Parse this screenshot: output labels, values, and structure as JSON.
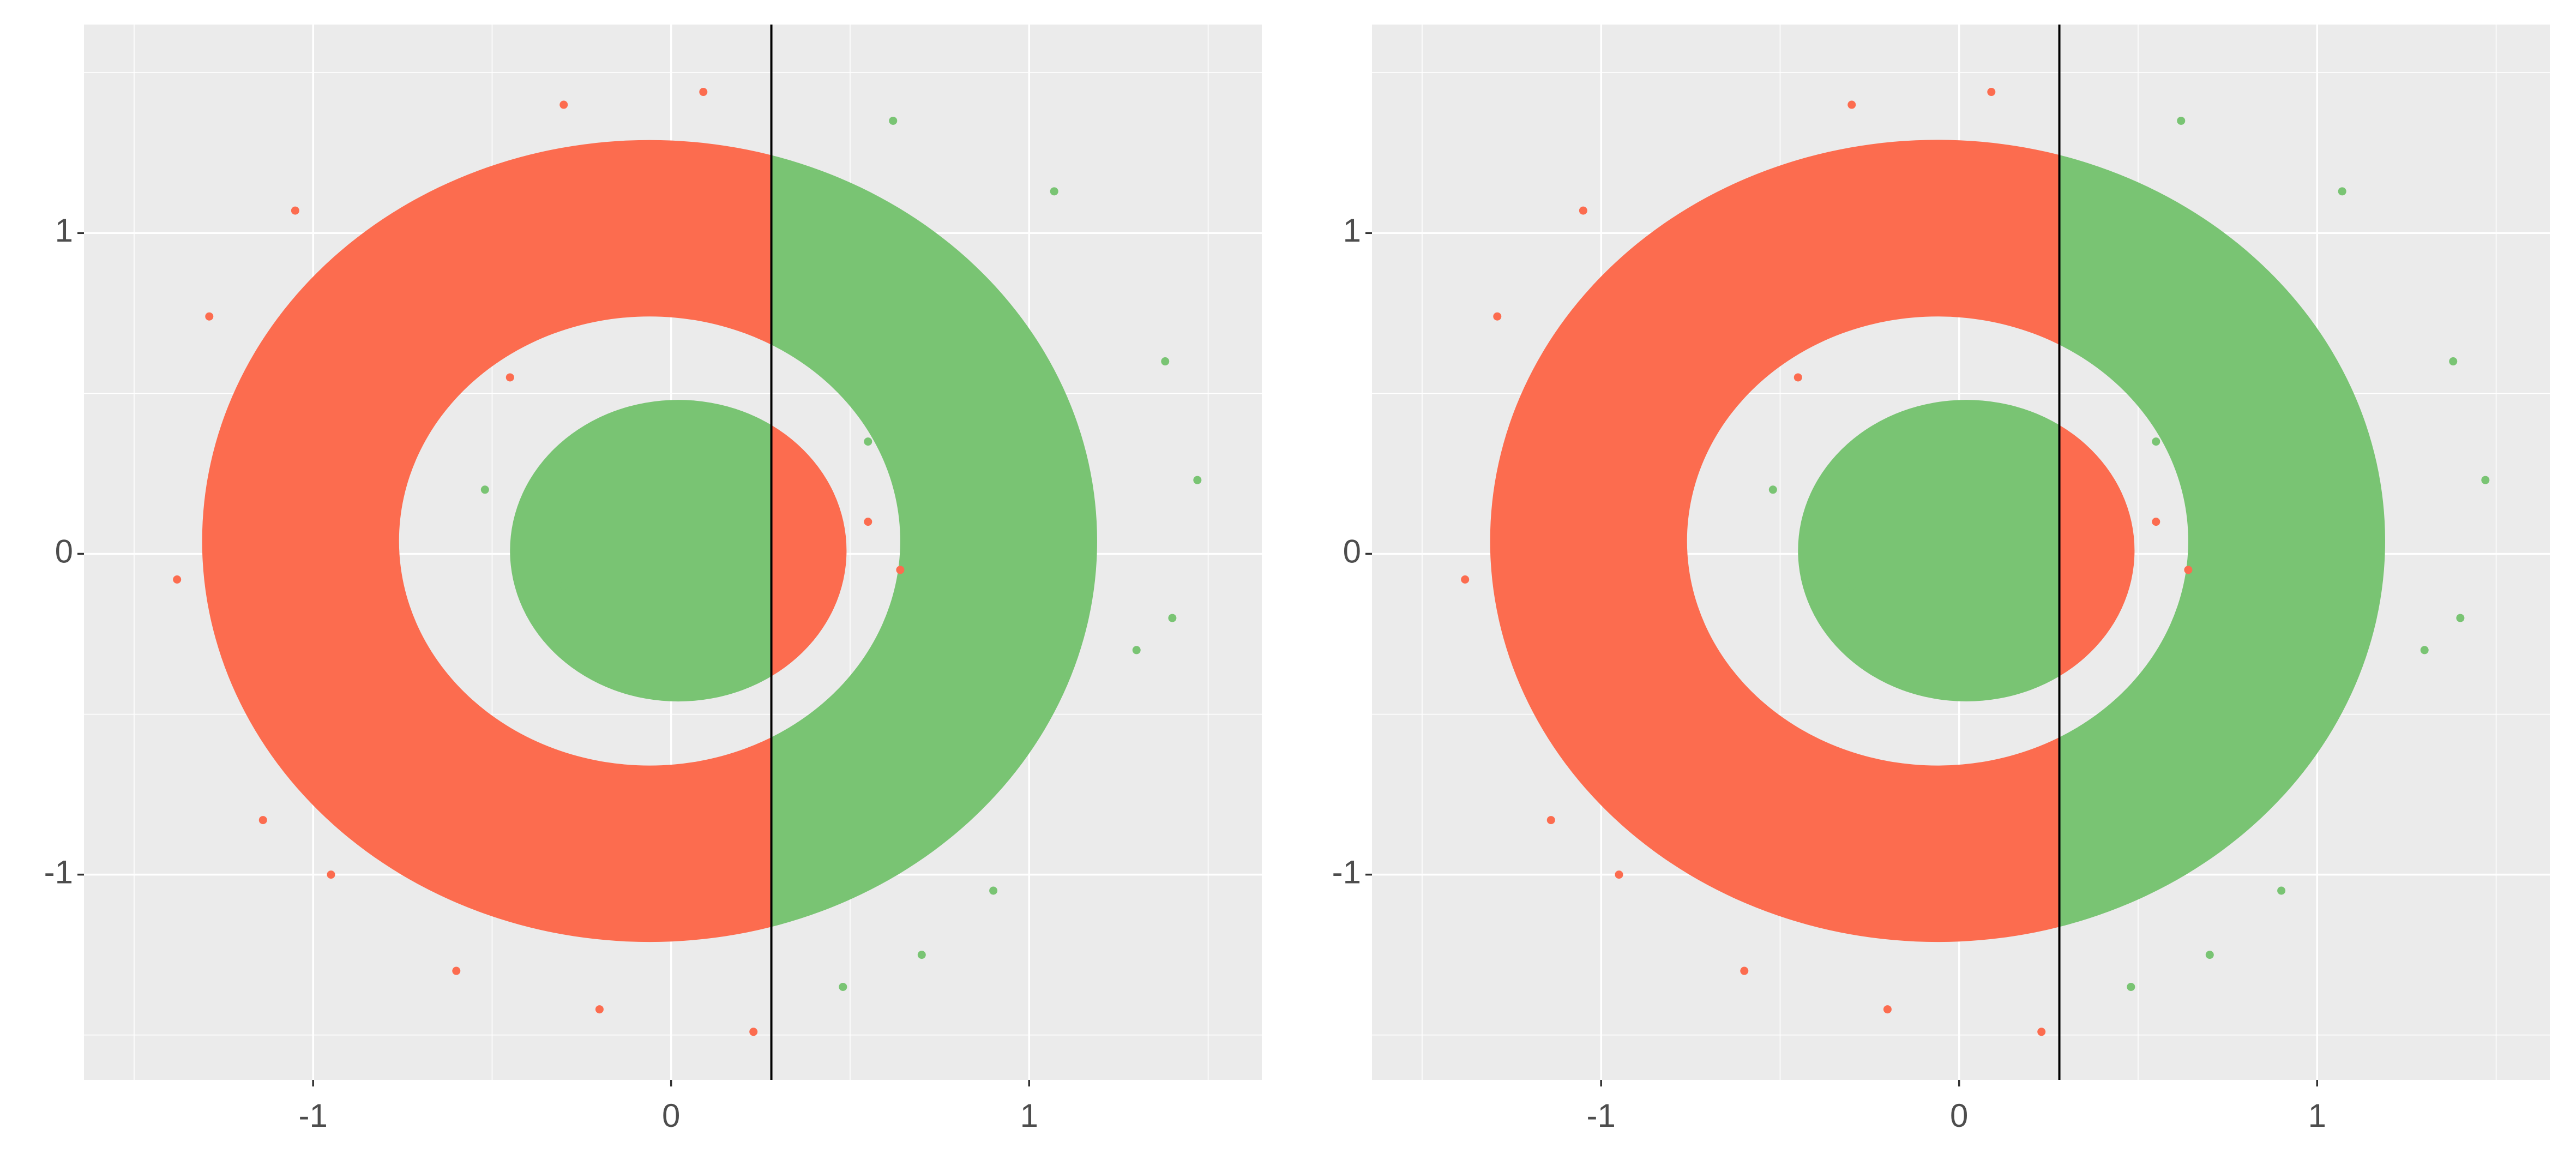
{
  "chart_data": [
    {
      "type": "scatter",
      "xlim": [
        -1.64,
        1.65
      ],
      "ylim": [
        -1.64,
        1.65
      ],
      "xticks": [
        -1,
        0,
        1
      ],
      "yticks": [
        -1,
        0,
        1
      ],
      "minor_ticks": [
        -1.5,
        -0.5,
        0.5,
        1.5
      ],
      "grid": true,
      "split_x": 0.28,
      "regions": [
        {
          "center": [
            -0.06,
            0.04
          ],
          "radii": [
            0.7,
            1.25
          ],
          "colors": [
            "#fc6c4f",
            "#79c473"
          ]
        },
        {
          "center": [
            0.02,
            0.01
          ],
          "radii": [
            0,
            0.47
          ],
          "colors": [
            "#79c473",
            "#fc6c4f"
          ]
        }
      ],
      "series": [
        {
          "color": "#fc6c4f",
          "x": [
            -1.29,
            -1.05,
            0.09,
            0.23,
            -1.14,
            -0.95,
            -0.3,
            -0.45,
            0.64,
            -1.38,
            -0.6,
            -0.2,
            0.55
          ],
          "y": [
            0.74,
            1.07,
            1.44,
            -1.49,
            -0.83,
            -1.0,
            1.4,
            0.55,
            -0.05,
            -0.08,
            -1.3,
            -1.42,
            0.1
          ]
        },
        {
          "color": "#79c473",
          "x": [
            1.47,
            1.38,
            1.3,
            0.62,
            0.48,
            1.07,
            0.7,
            -0.3,
            -0.52,
            1.4,
            0.55,
            0.9
          ],
          "y": [
            0.23,
            0.6,
            -0.3,
            1.35,
            -1.35,
            1.13,
            -1.25,
            -0.1,
            0.2,
            -0.2,
            0.35,
            -1.05
          ]
        }
      ]
    },
    {
      "type": "scatter",
      "xlim": [
        -1.64,
        1.65
      ],
      "ylim": [
        -1.64,
        1.65
      ],
      "xticks": [
        -1,
        0,
        1
      ],
      "yticks": [
        -1,
        0,
        1
      ],
      "minor_ticks": [
        -1.5,
        -0.5,
        0.5,
        1.5
      ],
      "grid": true,
      "split_x": 0.28,
      "regions": [
        {
          "center": [
            -0.06,
            0.04
          ],
          "radii": [
            0.7,
            1.25
          ],
          "colors": [
            "#fc6c4f",
            "#79c473"
          ]
        },
        {
          "center": [
            0.02,
            0.01
          ],
          "radii": [
            0,
            0.47
          ],
          "colors": [
            "#79c473",
            "#fc6c4f"
          ]
        }
      ],
      "series": [
        {
          "color": "#fc6c4f",
          "x": [
            -1.29,
            -1.05,
            0.09,
            0.23,
            -1.14,
            -0.95,
            -0.3,
            -0.45,
            0.64,
            -1.38,
            -0.6,
            -0.2,
            0.55
          ],
          "y": [
            0.74,
            1.07,
            1.44,
            -1.49,
            -0.83,
            -1.0,
            1.4,
            0.55,
            -0.05,
            -0.08,
            -1.3,
            -1.42,
            0.1
          ]
        },
        {
          "color": "#79c473",
          "x": [
            1.47,
            1.38,
            1.3,
            0.62,
            0.48,
            1.07,
            0.7,
            -0.3,
            -0.52,
            1.4,
            0.55,
            0.9
          ],
          "y": [
            0.23,
            0.6,
            -0.3,
            1.35,
            -1.35,
            1.13,
            -1.25,
            -0.1,
            0.2,
            -0.2,
            0.35,
            -1.05
          ]
        }
      ]
    }
  ]
}
